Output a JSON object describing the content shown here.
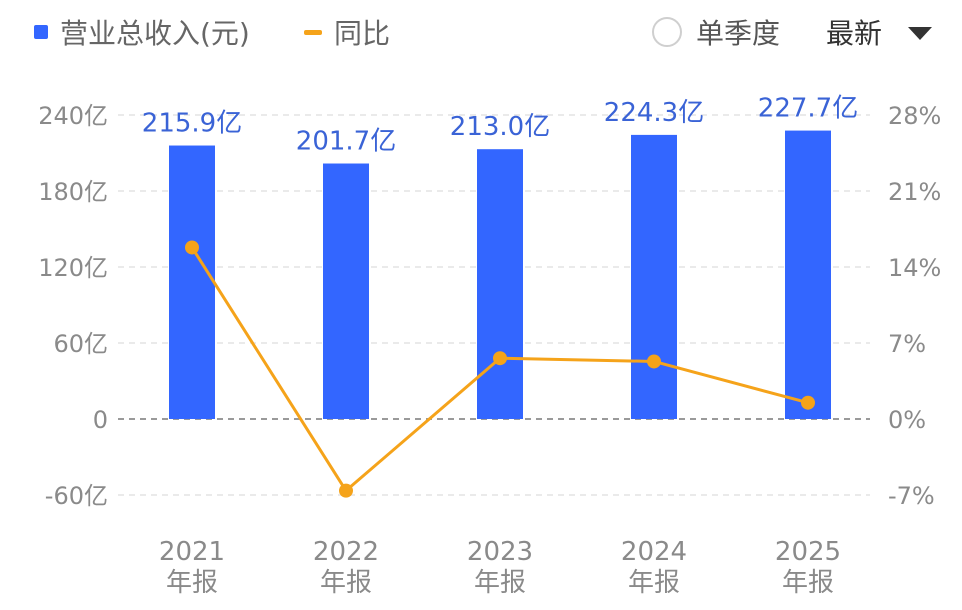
{
  "header": {
    "legend_revenue": "营业总收入(元)",
    "legend_yoy": "同比",
    "quarter_toggle_label": "单季度",
    "sort_label": "最新"
  },
  "colors": {
    "bar": "#3366ff",
    "line": "#f5a31a",
    "grid": "#e3e3e3",
    "zero": "#9a9a9a"
  },
  "chart_data": {
    "type": "bar",
    "categories": [
      "2021",
      "2022",
      "2023",
      "2024",
      "2025"
    ],
    "category_sublabels": [
      "年报",
      "年报",
      "年报",
      "年报",
      "年报"
    ],
    "series": [
      {
        "name": "营业总收入(元)",
        "type": "bar",
        "axis": "left",
        "values": [
          215.9,
          201.7,
          213.0,
          224.3,
          227.7
        ],
        "labels": [
          "215.9亿",
          "201.7亿",
          "213.0亿",
          "224.3亿",
          "227.7亿"
        ]
      },
      {
        "name": "同比",
        "type": "line",
        "axis": "right",
        "values": [
          15.8,
          -6.6,
          5.6,
          5.3,
          1.5
        ]
      }
    ],
    "left_axis": {
      "ylim": [
        -60,
        240
      ],
      "ticks": [
        -60,
        0,
        60,
        120,
        180,
        240
      ],
      "tick_labels": [
        "-60亿",
        "0",
        "60亿",
        "120亿",
        "180亿",
        "240亿"
      ]
    },
    "right_axis": {
      "ylim": [
        -7,
        28
      ],
      "ticks": [
        -7,
        0,
        7,
        14,
        21,
        28
      ],
      "tick_labels": [
        "-7%",
        "0%",
        "7%",
        "14%",
        "21%",
        "28%"
      ]
    },
    "grid": true
  }
}
